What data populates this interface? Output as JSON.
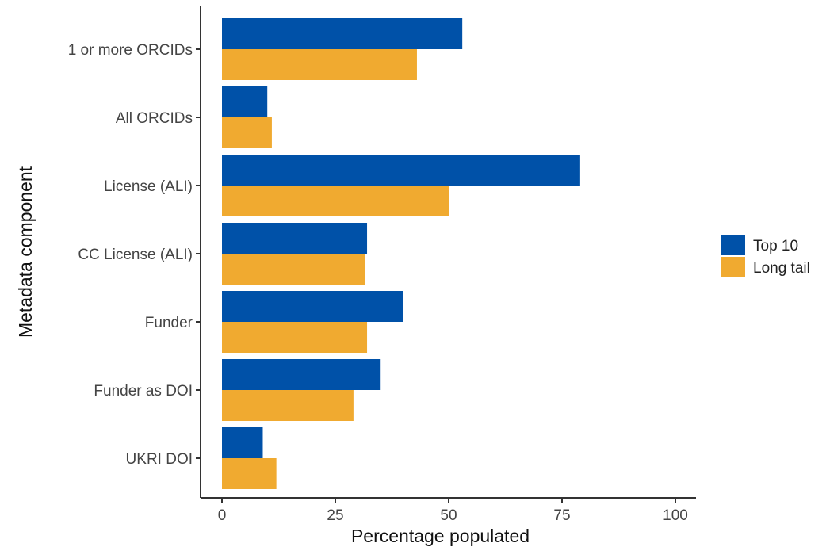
{
  "chart_data": {
    "type": "bar",
    "orientation": "horizontal",
    "categories": [
      "1 or more ORCIDs",
      "All ORCIDs",
      "License (ALI)",
      "CC License (ALI)",
      "Funder",
      "Funder as DOI",
      "UKRI DOI"
    ],
    "series": [
      {
        "name": "Top 10",
        "color": "#0051a8",
        "values": [
          53,
          10,
          79,
          32,
          40,
          35,
          9
        ]
      },
      {
        "name": "Long tail",
        "color": "#f0aa30",
        "values": [
          43,
          11,
          50,
          31.5,
          32,
          29,
          12
        ]
      }
    ],
    "xlabel": "Percentage populated",
    "ylabel": "Metadata component",
    "xlim": [
      0,
      100
    ],
    "xticks": [
      0,
      25,
      50,
      75,
      100
    ],
    "xtick_labels": [
      "0",
      "25",
      "50",
      "75",
      "100"
    ],
    "grid": false,
    "legend_position": "right"
  }
}
